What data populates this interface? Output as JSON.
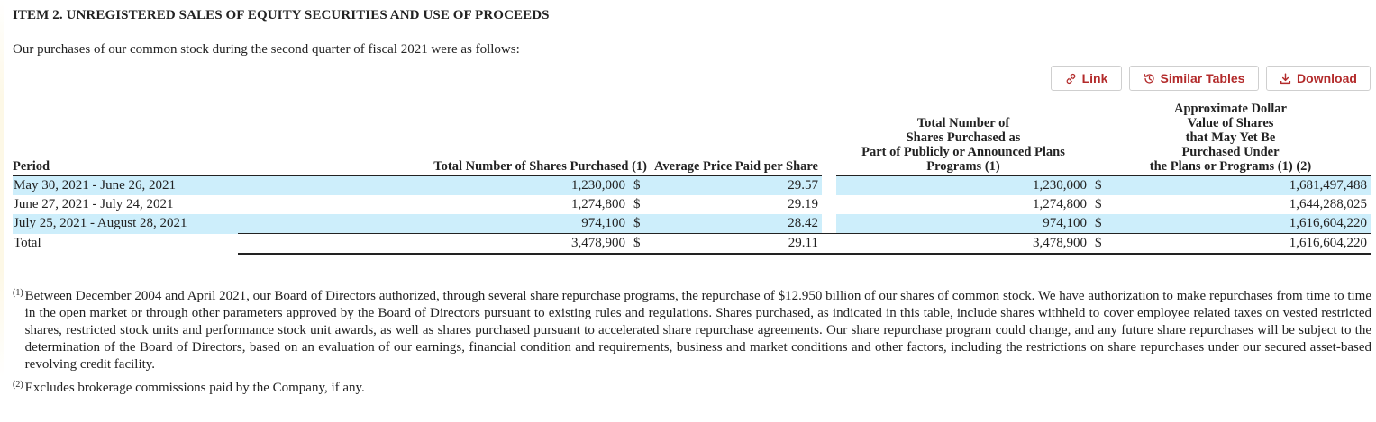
{
  "heading": "ITEM 2. UNREGISTERED SALES OF EQUITY SECURITIES AND USE OF PROCEEDS",
  "intro": "Our purchases of our common stock during the second quarter of fiscal 2021 were as follows:",
  "toolbar": {
    "link_label": "Link",
    "similar_label": "Similar Tables",
    "download_label": "Download",
    "accent_color": "#b32b2b"
  },
  "table": {
    "headers": {
      "period": "Period",
      "total_shares": "Total Number of Shares Purchased (1)",
      "avg_price": "Average Price Paid per Share",
      "plans_shares": "Total Number of Shares Purchased as Part of Publicly or Announced Plans Programs (1)",
      "dollar_value": "Approximate Dollar Value of Shares that May Yet Be Purchased Under the Plans or Programs (1) (2)"
    },
    "header_lines": {
      "plans_shares": [
        "Total Number of",
        "Shares Purchased as",
        "Part of Publicly or Announced Plans",
        "Programs (1)"
      ],
      "dollar_value": [
        "Approximate Dollar",
        "Value of Shares",
        "that May Yet Be",
        "Purchased Under",
        "the Plans or Programs (1) (2)"
      ]
    },
    "rows": [
      {
        "period": "May 30, 2021 - June 26, 2021",
        "total_shares": "1,230,000",
        "cur1": "$",
        "avg_price": "29.57",
        "plans_shares": "1,230,000",
        "cur2": "$",
        "dollar_value": "1,681,497,488"
      },
      {
        "period": "June 27, 2021 - July 24, 2021",
        "total_shares": "1,274,800",
        "cur1": "$",
        "avg_price": "29.19",
        "plans_shares": "1,274,800",
        "cur2": "$",
        "dollar_value": "1,644,288,025"
      },
      {
        "period": "July 25, 2021 - August 28, 2021",
        "total_shares": "974,100",
        "cur1": "$",
        "avg_price": "28.42",
        "plans_shares": "974,100",
        "cur2": "$",
        "dollar_value": "1,616,604,220"
      }
    ],
    "total": {
      "period": "Total",
      "total_shares": "3,478,900",
      "cur1": "$",
      "avg_price": "29.11",
      "plans_shares": "3,478,900",
      "cur2": "$",
      "dollar_value": "1,616,604,220"
    },
    "shade_color": "#cdeefb"
  },
  "footnotes": [
    {
      "marker": "(1)",
      "text": "Between December 2004 and April 2021, our Board of Directors authorized, through several share repurchase programs, the repurchase of $12.950 billion of our shares of common stock. We have authorization to make repurchases from time to time in the open market or through other parameters approved by the Board of Directors pursuant to existing rules and regulations. Shares purchased, as indicated in this table, include shares withheld to cover employee related taxes on vested restricted shares, restricted stock units and performance stock unit awards, as well as shares purchased pursuant to accelerated share repurchase agreements. Our share repurchase program could change, and any future share repurchases will be subject to the determination of the Board of Directors, based on an evaluation of our earnings, financial condition and requirements, business and market conditions and other factors, including the restrictions on share repurchases under our secured asset-based revolving credit facility."
    },
    {
      "marker": "(2)",
      "text": "Excludes brokerage commissions paid by the Company, if any."
    }
  ]
}
